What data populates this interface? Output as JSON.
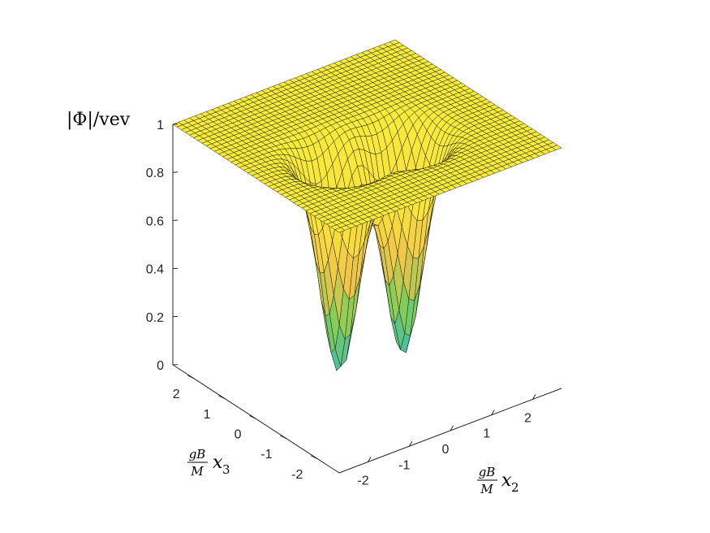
{
  "chart_data": {
    "type": "surface",
    "title": "",
    "zlabel": "|Φ|/vev",
    "xlabel": {
      "num": "gB",
      "den": "M",
      "var": "x",
      "sub": "2"
    },
    "ylabel": {
      "num": "gB",
      "den": "M",
      "var": "x",
      "sub": "3"
    },
    "xlim": [
      -2.7,
      2.7
    ],
    "ylim": [
      -2.7,
      2.7
    ],
    "zlim": [
      0,
      1
    ],
    "x_ticks": [
      "-2",
      "-1",
      "0",
      "1",
      "2"
    ],
    "y_ticks": [
      "-2",
      "-1",
      "0",
      "1",
      "2"
    ],
    "z_ticks": [
      "0",
      "0.2",
      "0.4",
      "0.6",
      "0.8",
      "1"
    ],
    "x_tick_values": [
      -2,
      -1,
      0,
      1,
      2
    ],
    "y_tick_values": [
      -2,
      -1,
      0,
      1,
      2
    ],
    "z_tick_values": [
      0,
      0.2,
      0.4,
      0.6,
      0.8,
      1
    ],
    "grid_points": 40,
    "vortices": [
      {
        "x": -0.9,
        "y": -0.3,
        "min_value": 0.1
      },
      {
        "x": 0.5,
        "y": -0.5,
        "min_value": 0.1
      }
    ],
    "core_size": 0.55,
    "colormap": [
      "#3ebcb1",
      "#7ccd5b",
      "#f0c54a",
      "#f9e43a",
      "#f7ec3a"
    ],
    "edge_color": "#111111"
  }
}
